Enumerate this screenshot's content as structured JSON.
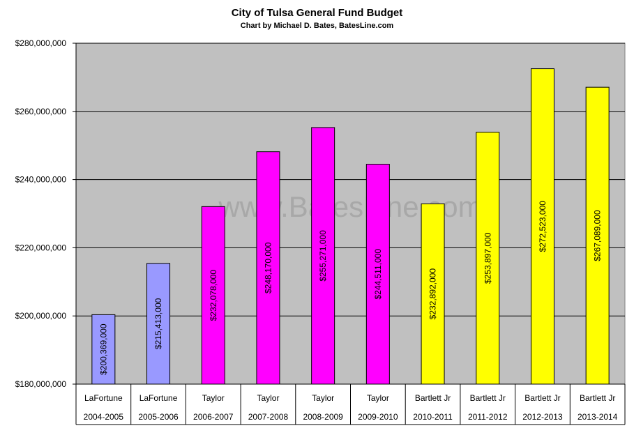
{
  "chart_data": {
    "type": "bar",
    "title": "City of Tulsa General Fund Budget",
    "subtitle": "Chart by Michael D. Bates, BatesLine.com",
    "watermark": "www.BatesLine.com",
    "ylim": [
      180000000,
      280000000
    ],
    "ytick_values": [
      180000000,
      200000000,
      220000000,
      240000000,
      260000000,
      280000000
    ],
    "ytick_labels": [
      "$180,000,000",
      "$200,000,000",
      "$220,000,000",
      "$240,000,000",
      "$260,000,000",
      "$280,000,000"
    ],
    "grid": true,
    "plot_background": "#c0c0c0",
    "categories": [
      {
        "mayor": "LaFortune",
        "year": "2004-2005"
      },
      {
        "mayor": "LaFortune",
        "year": "2005-2006"
      },
      {
        "mayor": "Taylor",
        "year": "2006-2007"
      },
      {
        "mayor": "Taylor",
        "year": "2007-2008"
      },
      {
        "mayor": "Taylor",
        "year": "2008-2009"
      },
      {
        "mayor": "Taylor",
        "year": "2009-2010"
      },
      {
        "mayor": "Bartlett Jr",
        "year": "2010-2011"
      },
      {
        "mayor": "Bartlett Jr",
        "year": "2011-2012"
      },
      {
        "mayor": "Bartlett Jr",
        "year": "2012-2013"
      },
      {
        "mayor": "Bartlett Jr",
        "year": "2013-2014"
      }
    ],
    "values": [
      200369000,
      215413000,
      232078000,
      248170000,
      255271000,
      244511000,
      232892000,
      253897000,
      272523000,
      267089000
    ],
    "data_labels": [
      "$200,369,000",
      "$215,413,000",
      "$232,078,000",
      "$248,170,000",
      "$255,271,000",
      "$244,511,000",
      "$232,892,000",
      "$253,897,000",
      "$272,523,000",
      "$267,089,000"
    ],
    "bar_colors": [
      "#9999ff",
      "#9999ff",
      "#ff00ff",
      "#ff00ff",
      "#ff00ff",
      "#ff00ff",
      "#ffff00",
      "#ffff00",
      "#ffff00",
      "#ffff00"
    ]
  }
}
